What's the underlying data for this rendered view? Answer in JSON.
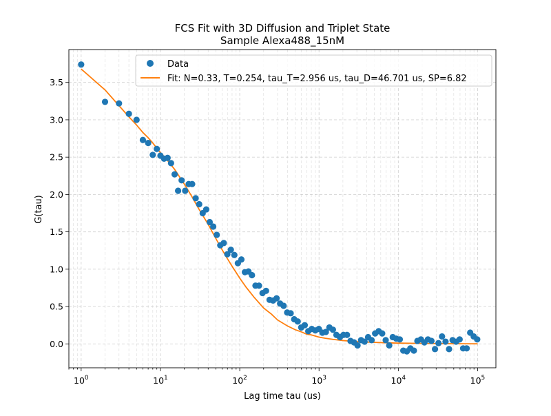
{
  "chart_data": {
    "type": "scatter",
    "title": "FCS Fit with 3D Diffusion and Triplet State",
    "subtitle": "Sample Alexa488_15nM",
    "xlabel": "Lag time tau (us)",
    "ylabel": "G(tau)",
    "xscale": "log",
    "xlim": [
      0.7,
      170000
    ],
    "ylim": [
      -0.32,
      3.94
    ],
    "grid": "both-dashed",
    "legend_position": "top-right",
    "x_ticks": [
      {
        "value": 1,
        "base": "10",
        "exp": "0"
      },
      {
        "value": 10,
        "base": "10",
        "exp": "1"
      },
      {
        "value": 100,
        "base": "10",
        "exp": "2"
      },
      {
        "value": 1000,
        "base": "10",
        "exp": "3"
      },
      {
        "value": 10000,
        "base": "10",
        "exp": "4"
      },
      {
        "value": 100000,
        "base": "10",
        "exp": "5"
      }
    ],
    "y_ticks": [
      {
        "value": 0.0,
        "label": "0.0"
      },
      {
        "value": 0.5,
        "label": "0.5"
      },
      {
        "value": 1.0,
        "label": "1.0"
      },
      {
        "value": 1.5,
        "label": "1.5"
      },
      {
        "value": 2.0,
        "label": "2.0"
      },
      {
        "value": 2.5,
        "label": "2.5"
      },
      {
        "value": 3.0,
        "label": "3.0"
      },
      {
        "value": 3.5,
        "label": "3.5"
      }
    ],
    "series": [
      {
        "name": "Data",
        "kind": "points",
        "color": "#1f77b4",
        "x": [
          1.0,
          2.0,
          3.0,
          4.0,
          5.0,
          6.0,
          7.0,
          8.0,
          9.0,
          10.0,
          11.1,
          12.3,
          13.6,
          15.1,
          16.7,
          18.5,
          20.5,
          22.7,
          25.1,
          27.8,
          30.8,
          34.1,
          37.8,
          41.8,
          46.3,
          51.3,
          56.8,
          62.9,
          69.7,
          77.2,
          85.5,
          94.7,
          104.9,
          116.2,
          128.7,
          142.6,
          157.9,
          174.9,
          193.7,
          214.6,
          237.7,
          263.2,
          291.6,
          322.9,
          357.7,
          396.2,
          438.8,
          486.0,
          538.3,
          596.2,
          660.4,
          731.5,
          810.2,
          897.4,
          994.0,
          1101,
          1219,
          1351,
          1496,
          1657,
          1835,
          2033,
          2251,
          2494,
          2762,
          3059,
          3388,
          3753,
          4157,
          4604,
          5100,
          5649,
          6257,
          6930,
          7676,
          8502,
          9417,
          10431,
          11553,
          12797,
          14174,
          15699,
          17389,
          19260,
          21333,
          23629,
          26172,
          28989,
          32109,
          35565,
          39392,
          43632,
          48328,
          53529,
          59290,
          65671,
          72739,
          80568,
          89239,
          98843
        ],
        "y": [
          3.74,
          3.24,
          3.22,
          3.08,
          3.0,
          2.73,
          2.69,
          2.53,
          2.61,
          2.52,
          2.48,
          2.49,
          2.42,
          2.27,
          2.05,
          2.19,
          2.05,
          2.14,
          2.14,
          1.95,
          1.87,
          1.75,
          1.8,
          1.63,
          1.57,
          1.46,
          1.32,
          1.35,
          1.2,
          1.26,
          1.19,
          1.08,
          1.13,
          0.96,
          0.97,
          0.92,
          0.78,
          0.78,
          0.68,
          0.71,
          0.59,
          0.58,
          0.61,
          0.54,
          0.51,
          0.42,
          0.41,
          0.33,
          0.3,
          0.22,
          0.25,
          0.17,
          0.2,
          0.18,
          0.2,
          0.15,
          0.16,
          0.22,
          0.19,
          0.12,
          0.09,
          0.12,
          0.12,
          0.04,
          0.02,
          -0.02,
          0.05,
          0.03,
          0.09,
          0.05,
          0.14,
          0.17,
          0.14,
          0.05,
          -0.02,
          0.09,
          0.07,
          0.06,
          -0.09,
          -0.1,
          -0.06,
          -0.09,
          0.04,
          0.06,
          0.02,
          0.06,
          0.04,
          -0.07,
          0.01,
          0.1,
          0.03,
          -0.07,
          0.05,
          0.03,
          0.06,
          -0.06,
          -0.06,
          0.15,
          0.1,
          0.06
        ]
      },
      {
        "name": "Fit: N=0.33, T=0.254, tau_T=2.956 us, tau_D=46.701 us, SP=6.82",
        "kind": "line",
        "color": "#ff7f0e",
        "x": [
          1,
          2,
          3,
          4,
          5,
          6,
          7,
          8,
          9,
          10,
          12,
          15,
          20,
          25,
          30,
          40,
          50,
          60,
          70,
          80,
          100,
          120,
          150,
          200,
          250,
          300,
          400,
          500,
          600,
          700,
          800,
          1000,
          1200,
          1500,
          2000,
          3000,
          5000,
          7000,
          10000,
          20000,
          30000,
          50000,
          70000,
          100000
        ],
        "y": [
          3.68,
          3.4,
          3.19,
          3.04,
          2.93,
          2.83,
          2.76,
          2.69,
          2.62,
          2.56,
          2.47,
          2.34,
          2.14,
          1.97,
          1.82,
          1.6,
          1.41,
          1.26,
          1.14,
          1.04,
          0.88,
          0.76,
          0.63,
          0.48,
          0.4,
          0.32,
          0.24,
          0.19,
          0.16,
          0.13,
          0.12,
          0.09,
          0.075,
          0.06,
          0.045,
          0.03,
          0.02,
          0.015,
          0.01,
          0.006,
          0.004,
          0.002,
          0.0015,
          0.001
        ]
      }
    ]
  }
}
